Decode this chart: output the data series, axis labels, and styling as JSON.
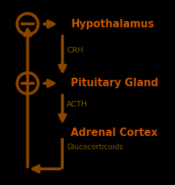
{
  "bg_color": "#000000",
  "arrow_color": "#8B4500",
  "label_color_bold": "#CC5500",
  "label_color_normal": "#8B5A00",
  "hypothalamus": "Hypothalamus",
  "pituitary": "Pituitary Gland",
  "adrenal": "Adrenal Cortex",
  "crh": "CRH",
  "acth": "ACTH",
  "gluco": "Glucocorticoids",
  "lw": 3.0
}
